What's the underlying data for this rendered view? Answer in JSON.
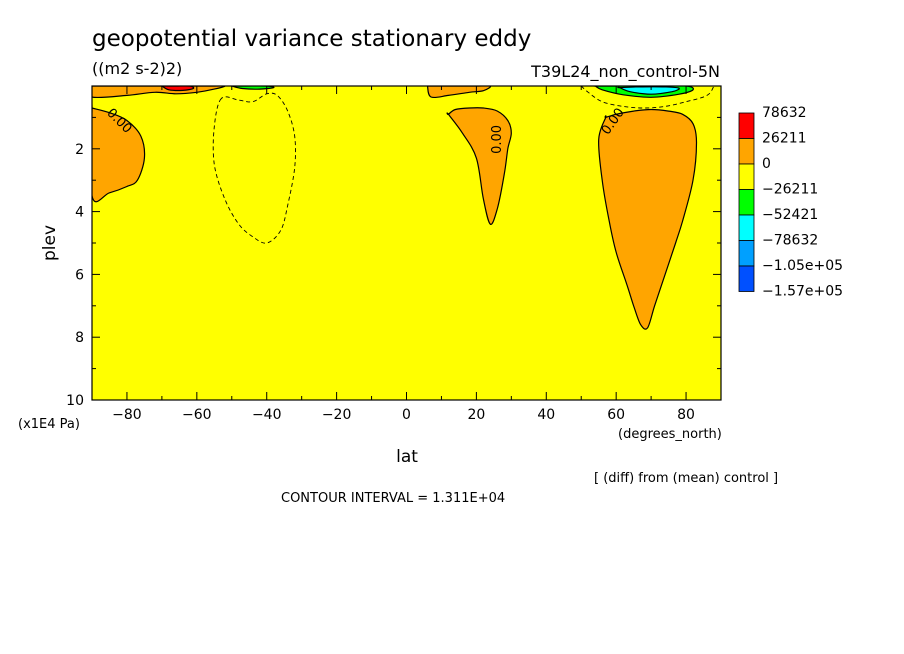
{
  "chart_data": {
    "type": "contour",
    "title": "geopotential variance stationary eddy",
    "units": "((m2 s-2)2)",
    "run_label": "T39L24_non_control-5N",
    "xlabel": "lat",
    "xunits": "(degrees_north)",
    "ylabel": "plev",
    "yunits": "(x1E4 Pa)",
    "xlim": [
      -90,
      90
    ],
    "ylim": [
      10,
      0
    ],
    "x_ticks": [
      -80,
      -60,
      -40,
      -20,
      0,
      20,
      40,
      60,
      80
    ],
    "y_ticks": [
      2,
      4,
      6,
      8,
      10
    ],
    "contour_interval": "CONTOUR INTERVAL = 1.311E+04",
    "note": "[ (diff) from (mean) control ]",
    "contour_label": "0.00",
    "legend": [
      {
        "label": "78632",
        "color": "#ff0000"
      },
      {
        "label": "26211",
        "color": "#ffa500"
      },
      {
        "label": "0",
        "color": "#ffff00"
      },
      {
        "label": "-26211",
        "color": "#00ff00"
      },
      {
        "label": "-52421",
        "color": "#00ffff"
      },
      {
        "label": "-78632",
        "color": "#00a0ff"
      },
      {
        "label": "-1.05e+05",
        "color": "#0050ff"
      },
      {
        "label": "-1.57e+05",
        "color": ""
      }
    ],
    "regions": [
      {
        "name": "positive-southern-high-lat",
        "level": "26211",
        "color": "#ffa500",
        "lat": [
          -90,
          -90,
          -85,
          -80,
          -77,
          -75,
          -76,
          -80,
          -85,
          -90
        ],
        "plev": [
          0.7,
          3.5,
          3.4,
          3.2,
          3.0,
          2.3,
          1.6,
          1.1,
          0.85,
          0.7
        ]
      },
      {
        "name": "positive-midlat-north",
        "level": "26211",
        "color": "#ffa500",
        "lat": [
          12,
          16,
          20,
          22,
          24,
          26,
          28,
          29,
          30,
          29,
          26,
          22,
          18,
          14,
          12
        ],
        "plev": [
          0.9,
          1.5,
          2.3,
          3.6,
          4.4,
          3.9,
          2.8,
          2.0,
          1.5,
          1.1,
          0.8,
          0.7,
          0.7,
          0.75,
          0.9
        ]
      },
      {
        "name": "positive-northern-high-lat",
        "level": "26211",
        "color": "#ffa500",
        "lat": [
          57,
          55,
          56,
          58,
          60,
          63,
          65,
          67,
          69,
          71,
          74,
          77,
          79,
          82,
          83,
          82,
          79,
          75,
          70,
          65,
          60,
          57
        ],
        "plev": [
          1.0,
          1.7,
          3.0,
          4.3,
          5.3,
          6.3,
          7.0,
          7.6,
          7.7,
          7.0,
          6.0,
          5.0,
          4.3,
          3.0,
          1.8,
          1.2,
          0.9,
          0.8,
          0.75,
          0.8,
          0.9,
          1.0
        ]
      },
      {
        "name": "positive-top-left",
        "level": "26211",
        "color": "#ffa500",
        "lat": [
          -90,
          -90,
          -80,
          -72,
          -66,
          -60,
          -55,
          -52,
          -56,
          -66,
          -78,
          -90
        ],
        "plev": [
          0.0,
          0.35,
          0.3,
          0.2,
          0.25,
          0.2,
          0.1,
          0.0,
          0.0,
          0.0,
          0.0,
          0.0
        ]
      },
      {
        "name": "positive-top-midnorth",
        "level": "26211",
        "color": "#ffa500",
        "lat": [
          6,
          7,
          12,
          18,
          22,
          24,
          20,
          12,
          6
        ],
        "plev": [
          0.0,
          0.35,
          0.3,
          0.2,
          0.15,
          0.0,
          0.0,
          0.0,
          0.0
        ]
      },
      {
        "name": "max-top-left",
        "level": "78632",
        "color": "#ff0000",
        "lat": [
          -70,
          -68,
          -64,
          -61,
          -62,
          -66,
          -70
        ],
        "plev": [
          0.0,
          0.12,
          0.14,
          0.08,
          0.0,
          0.0,
          0.0
        ]
      },
      {
        "name": "neg-top-northern",
        "level": "-26211",
        "color": "#00ff00",
        "lat": [
          54,
          56,
          62,
          70,
          78,
          82,
          80,
          70,
          60,
          54
        ],
        "plev": [
          0.0,
          0.12,
          0.28,
          0.36,
          0.26,
          0.12,
          0.0,
          0.0,
          0.0,
          0.0
        ]
      },
      {
        "name": "neg-top-southern",
        "level": "-26211",
        "color": "#00ff00",
        "lat": [
          -50,
          -47,
          -42,
          -38,
          -40,
          -46,
          -50
        ],
        "plev": [
          0.0,
          0.08,
          0.1,
          0.05,
          0.0,
          0.0,
          0.0
        ]
      },
      {
        "name": "neg-top-north-core",
        "level": "-52421",
        "color": "#00ffff",
        "lat": [
          61,
          64,
          70,
          76,
          78,
          74,
          66,
          61
        ],
        "plev": [
          0.05,
          0.18,
          0.26,
          0.18,
          0.07,
          0.03,
          0.03,
          0.05
        ]
      }
    ],
    "negative_contours": [
      {
        "lat": [
          -53,
          -55,
          -55,
          -52,
          -48,
          -44,
          -40,
          -36,
          -34,
          -32,
          -32,
          -34,
          -37,
          -40,
          -44,
          -48,
          -53
        ],
        "plev": [
          0.4,
          1.3,
          2.5,
          3.6,
          4.4,
          4.8,
          5.0,
          4.6,
          3.8,
          2.6,
          1.6,
          0.8,
          0.3,
          0.25,
          0.5,
          0.45,
          0.4
        ]
      },
      {
        "lat": [
          50,
          52,
          56,
          62,
          68,
          74,
          80,
          86,
          88
        ],
        "plev": [
          0.0,
          0.2,
          0.5,
          0.65,
          0.7,
          0.65,
          0.5,
          0.3,
          0.0
        ]
      }
    ],
    "contour_label_positions": [
      {
        "lat": -83,
        "plev": 1.2,
        "angle": 45
      },
      {
        "lat": 27,
        "plev": 1.7,
        "angle": -90
      },
      {
        "lat": 60,
        "plev": 1.2,
        "angle": -55
      }
    ]
  }
}
